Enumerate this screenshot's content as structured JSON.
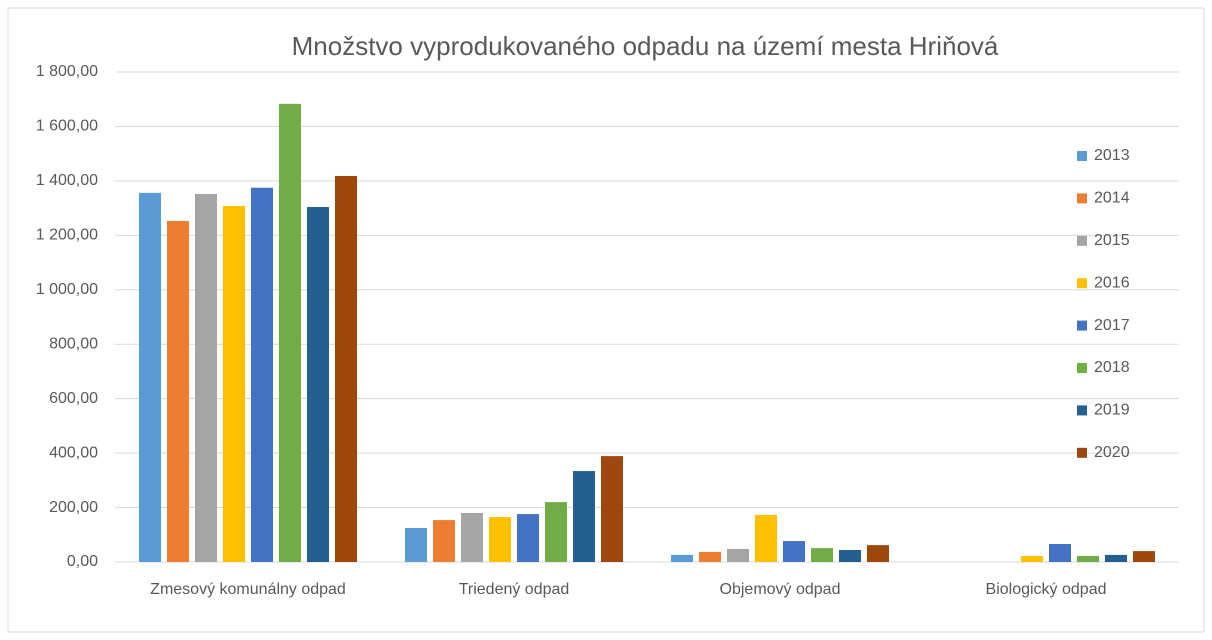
{
  "chart_data": {
    "type": "bar",
    "title": "Množstvo vyprodukovaného odpadu na území mesta Hriňová",
    "categories": [
      "Zmesový komunálny odpad",
      "Triedený odpad",
      "Objemový odpad",
      "Biologický odpad"
    ],
    "series": [
      {
        "name": "2013",
        "color": "#5b9bd5",
        "values": [
          1356,
          125,
          26,
          null
        ]
      },
      {
        "name": "2014",
        "color": "#ed7d31",
        "values": [
          1253,
          154,
          37,
          null
        ]
      },
      {
        "name": "2015",
        "color": "#a5a5a5",
        "values": [
          1352,
          180,
          48,
          null
        ]
      },
      {
        "name": "2016",
        "color": "#ffc000",
        "values": [
          1308,
          165,
          173,
          22
        ]
      },
      {
        "name": "2017",
        "color": "#4472c4",
        "values": [
          1375,
          176,
          77,
          66
        ]
      },
      {
        "name": "2018",
        "color": "#70ad47",
        "values": [
          1683,
          220,
          51,
          22
        ]
      },
      {
        "name": "2019",
        "color": "#255e91",
        "values": [
          1304,
          334,
          44,
          26
        ]
      },
      {
        "name": "2020",
        "color": "#9e480e",
        "values": [
          1418,
          389,
          62,
          40
        ]
      }
    ],
    "ylim": [
      0,
      1800
    ],
    "yticks": [
      {
        "value": 0,
        "label": "0,00"
      },
      {
        "value": 200,
        "label": "200,00"
      },
      {
        "value": 400,
        "label": "400,00"
      },
      {
        "value": 600,
        "label": "600,00"
      },
      {
        "value": 800,
        "label": "800,00"
      },
      {
        "value": 1000,
        "label": "1 000,00"
      },
      {
        "value": 1200,
        "label": "1 200,00"
      },
      {
        "value": 1400,
        "label": "1 400,00"
      },
      {
        "value": 1600,
        "label": "1 600,00"
      },
      {
        "value": 1800,
        "label": "1 800,00"
      }
    ],
    "grid": true,
    "legend": "right"
  }
}
